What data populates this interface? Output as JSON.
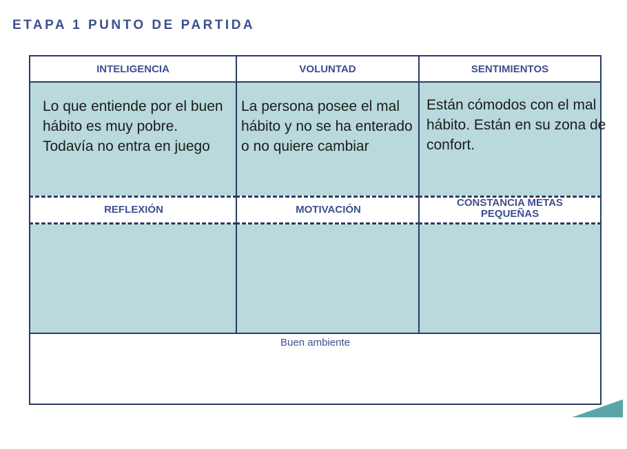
{
  "title": "ETAPA 1 PUNTO DE PARTIDA",
  "columns": [
    {
      "header": "INTELIGENCIA",
      "body": "Lo que entiende por el buen hábito es muy pobre. Todavía no entra en juego",
      "sub": "REFLEXIÓN"
    },
    {
      "header": "VOLUNTAD",
      "body": "La persona posee el mal hábito y no se ha enterado o no quiere cambiar",
      "sub": "MOTIVACIÓN"
    },
    {
      "header": "SENTIMIENTOS",
      "body": "Están cómodos con el mal hábito. Están en su zona de confort.",
      "sub": "CONSTANCIA METAS PEQUEÑAS"
    }
  ],
  "bottom": "Buen ambiente",
  "colors": {
    "accent": "#3d4f8e",
    "teal": "#b9d9dc",
    "border": "#2c3a63",
    "corner": "#5aa5a9"
  }
}
